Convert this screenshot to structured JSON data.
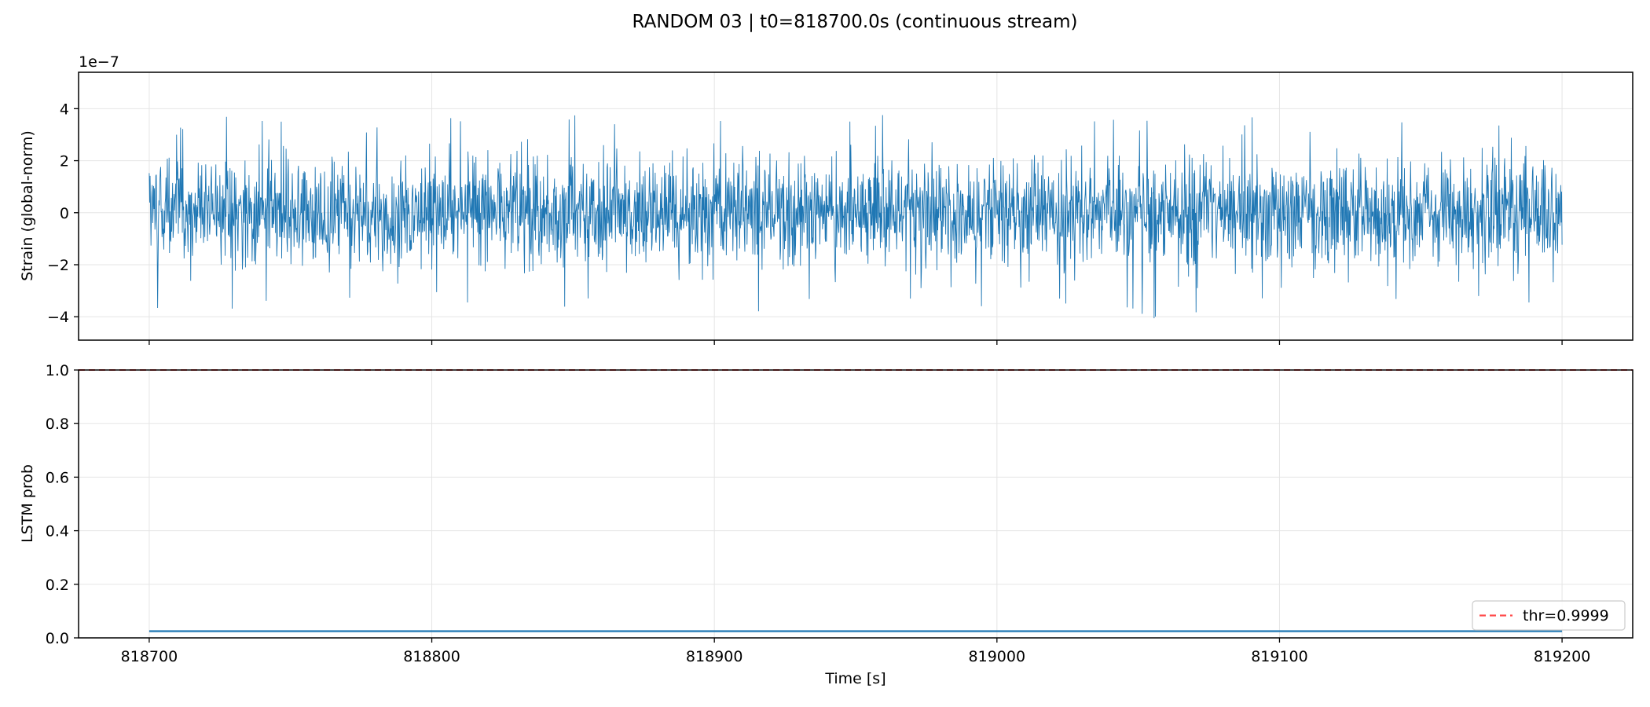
{
  "figure_title": "RANDOM 03 | t0=818700.0s (continuous stream)",
  "colors": {
    "series": "#1f77b4",
    "threshold": "#ff4d4d",
    "grid": "#e5e5e5",
    "axes": "#000000"
  },
  "chart_data": [
    {
      "type": "line",
      "title": "",
      "xlabel": "",
      "ylabel": "Strain (global-norm)",
      "offset_label": "1e−7",
      "xlim": [
        818675,
        819225
      ],
      "ylim": [
        -4.9,
        5.4
      ],
      "x_ticks": [
        818700,
        818800,
        818900,
        819000,
        819100,
        819200
      ],
      "y_ticks": [
        4,
        2,
        0,
        -2,
        -4
      ],
      "y_tick_labels": [
        "4",
        "2",
        "0",
        "−2",
        "−4"
      ],
      "grid": true,
      "series": [
        {
          "x_range": [
            818700,
            819200
          ],
          "approx_std": 1.0,
          "envelope_upper": [
            3.0,
            3.3,
            4.3,
            3.7,
            3.5,
            3.8,
            4.2,
            3.6,
            3.4,
            3.8,
            3.7,
            3.6,
            3.9,
            3.8,
            3.6,
            3.7,
            3.9,
            3.8,
            4.0,
            3.7,
            4.7,
            4.3,
            3.6,
            3.8,
            3.9,
            3.9,
            3.7,
            3.8,
            3.9,
            3.8,
            4.9,
            3.7,
            3.6,
            3.9,
            3.7,
            3.8,
            3.9,
            3.6,
            4.6,
            3.7,
            3.8,
            3.9,
            4.0,
            3.6,
            3.3,
            3.2
          ],
          "envelope_lower": [
            -3.8,
            -4.4,
            -4.2,
            -3.9,
            -3.8,
            -3.9,
            -3.7,
            -4.0,
            -3.8,
            -3.7,
            -3.9,
            -3.8,
            -3.8,
            -3.9,
            -3.6,
            -3.7,
            -3.8,
            -4.4,
            -3.8,
            -3.9,
            -4.1,
            -3.8,
            -3.8,
            -4.2,
            -3.6,
            -3.8,
            -3.7,
            -4.1,
            -3.8,
            -3.7,
            -4.1,
            -3.8,
            -4.2,
            -3.8,
            -3.9,
            -3.7,
            -3.8,
            -4.1,
            -3.7,
            -4.0,
            -3.8,
            -3.9,
            -4.1,
            -3.8,
            -3.9,
            -4.2
          ]
        }
      ]
    },
    {
      "type": "line",
      "title": "",
      "xlabel": "Time [s]",
      "ylabel": "LSTM prob",
      "xlim": [
        818675,
        819225
      ],
      "ylim": [
        0.0,
        1.0
      ],
      "x_ticks": [
        818700,
        818800,
        818900,
        819000,
        819100,
        819200
      ],
      "x_tick_labels": [
        "818700",
        "818800",
        "818900",
        "819000",
        "819100",
        "819200"
      ],
      "y_ticks": [
        0.0,
        0.2,
        0.4,
        0.6,
        0.8,
        1.0
      ],
      "y_tick_labels": [
        "0.0",
        "0.2",
        "0.4",
        "0.6",
        "0.8",
        "1.0"
      ],
      "grid": true,
      "legend_position": "lower-right",
      "series": [
        {
          "x": [
            818700,
            819200
          ],
          "y": [
            0.025,
            0.025
          ]
        }
      ],
      "threshold": {
        "value": 0.9999,
        "label": "thr=0.9999",
        "style": "dashed"
      }
    }
  ]
}
